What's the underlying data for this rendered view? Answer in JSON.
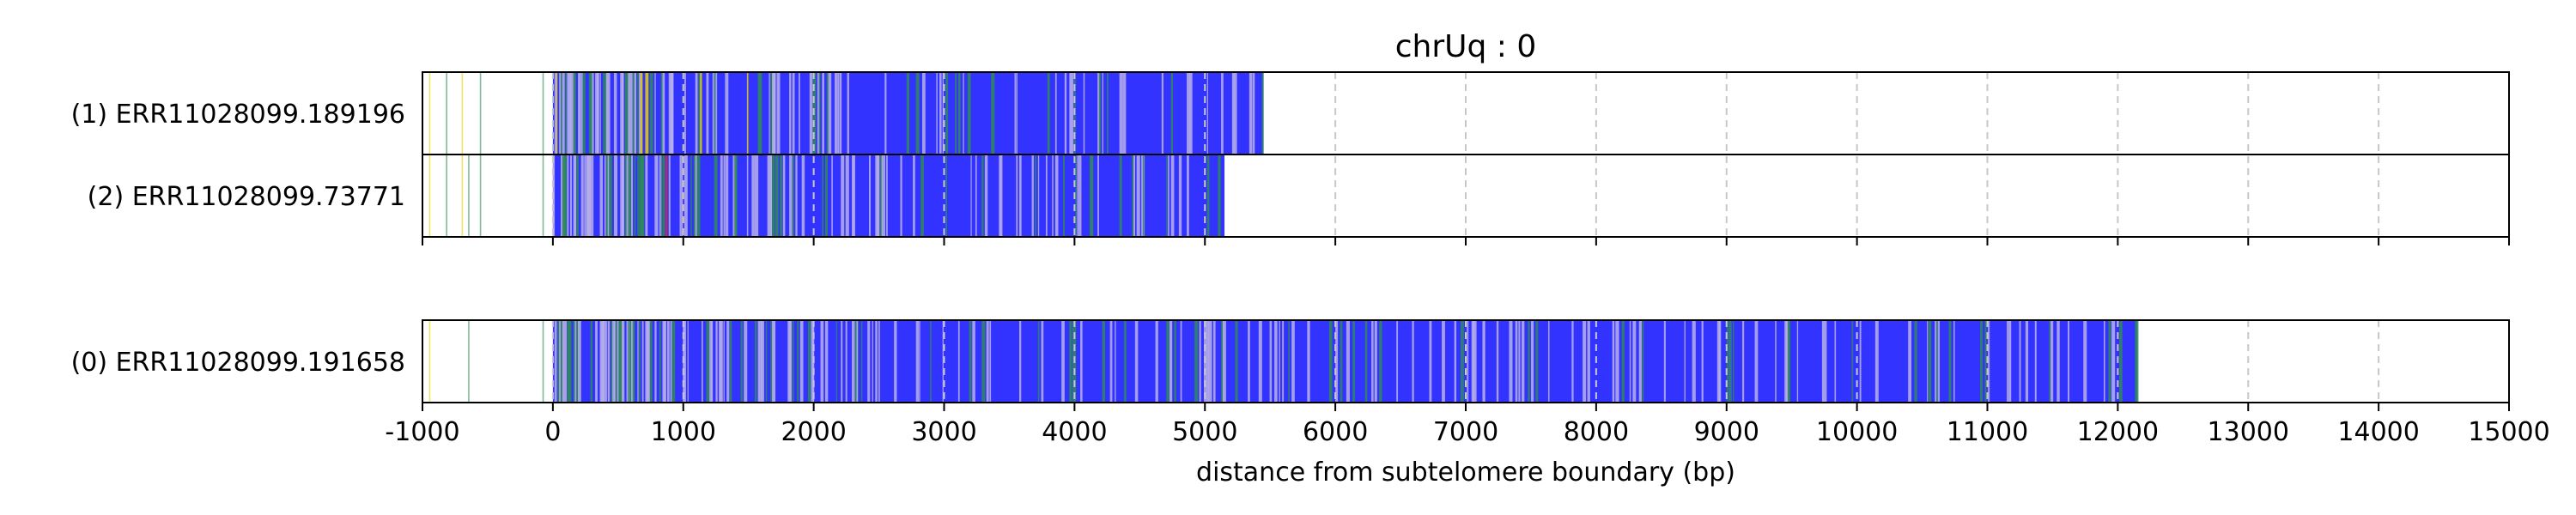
{
  "chart_data": {
    "type": "heatmap",
    "title": "chrUq : 0",
    "xlabel": "distance from subtelomere boundary (bp)",
    "ylabel": "",
    "xlim": [
      -1000,
      15000
    ],
    "xticks": [
      -1000,
      0,
      1000,
      2000,
      3000,
      4000,
      5000,
      6000,
      7000,
      8000,
      9000,
      10000,
      11000,
      12000,
      13000,
      14000,
      15000
    ],
    "xtick_labels": [
      "-1000",
      "0",
      "1000",
      "2000",
      "3000",
      "4000",
      "5000",
      "6000",
      "7000",
      "8000",
      "9000",
      "10000",
      "11000",
      "12000",
      "13000",
      "14000",
      "15000"
    ],
    "grid": "vertical dashed at x ticks",
    "colors": {
      "telomere_repeat": "#3333ff",
      "variant_green": "#2e8b57",
      "variant_yellow": "#e6d200",
      "variant_red": "#ee2222",
      "variant_light": "#b8b0e8",
      "grid": "#c8c8c8"
    },
    "groups": [
      {
        "reads": [
          {
            "label": "(1) ERR11028099.189196",
            "end_bp": 5450
          },
          {
            "label": "(2) ERR11028099.73771",
            "end_bp": 5150
          }
        ]
      },
      {
        "reads": [
          {
            "label": "(0) ERR11028099.191658",
            "end_bp": 12150
          }
        ]
      }
    ]
  }
}
